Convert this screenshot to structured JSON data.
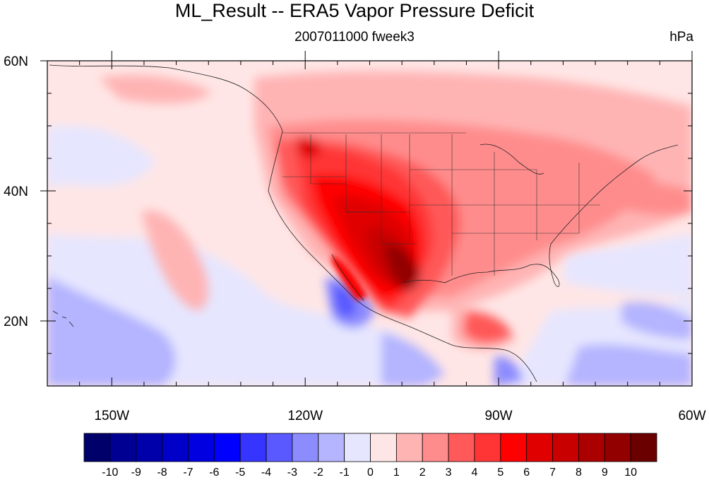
{
  "title": "ML_Result -- ERA5 Vapor Pressure Deficit",
  "subtitle": "2007011000 fweek3",
  "units": "hPa",
  "map": {
    "lon_range": [
      -160,
      -60
    ],
    "lat_range": [
      10,
      60
    ],
    "x_ticks": [
      {
        "lon": -150,
        "label": "150W"
      },
      {
        "lon": -120,
        "label": "120W"
      },
      {
        "lon": -90,
        "label": "90W"
      },
      {
        "lon": -60,
        "label": "60W"
      }
    ],
    "y_ticks": [
      {
        "lat": 60,
        "label": "60N"
      },
      {
        "lat": 40,
        "label": "40N"
      },
      {
        "lat": 20,
        "label": "20N"
      }
    ]
  },
  "colorbar": {
    "colors": [
      "#00006b",
      "#000093",
      "#0000ab",
      "#0000c8",
      "#0000e0",
      "#0000ff",
      "#3535ff",
      "#5959ff",
      "#8c8cff",
      "#b4b4ff",
      "#e6e6ff",
      "#ffe6e6",
      "#ffb4b4",
      "#ff8c8c",
      "#ff5959",
      "#ff3535",
      "#ff0000",
      "#e00000",
      "#c80000",
      "#ab0000",
      "#930000",
      "#6b0000"
    ],
    "labels": [
      "-10",
      "-9",
      "-8",
      "-7",
      "-6",
      "-5",
      "-4",
      "-3",
      "-2",
      "-1",
      "0",
      "1",
      "2",
      "3",
      "4",
      "5",
      "6",
      "7",
      "8",
      "9",
      "10"
    ]
  }
}
